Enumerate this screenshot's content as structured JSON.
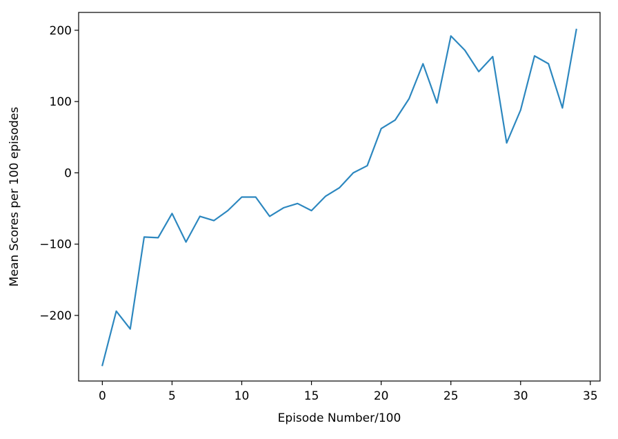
{
  "chart_data": {
    "type": "line",
    "title": "",
    "xlabel": "Episode Number/100",
    "ylabel": "Mean Scores per 100 episodes",
    "xlim": [
      -1.7,
      35.7
    ],
    "ylim": [
      -292,
      225
    ],
    "grid": false,
    "legend": "none",
    "line_color": "#2c87bf",
    "x_ticks": [
      0,
      5,
      10,
      15,
      20,
      25,
      30,
      35
    ],
    "x_tick_labels": [
      "0",
      "5",
      "10",
      "15",
      "20",
      "25",
      "30",
      "35"
    ],
    "y_ticks": [
      -200,
      -100,
      0,
      100,
      200
    ],
    "y_tick_labels": [
      "−200",
      "−100",
      "0",
      "100",
      "200"
    ],
    "series": [
      {
        "x": [
          0,
          1,
          2,
          3,
          4,
          5,
          6,
          7,
          8,
          9,
          10,
          11,
          12,
          13,
          14,
          15,
          16,
          17,
          18,
          19,
          20,
          21,
          22,
          23,
          24,
          25,
          26,
          27,
          28,
          29,
          30,
          31,
          32,
          33,
          34
        ],
        "values": [
          -270,
          -194,
          -219,
          -90,
          -91,
          -57,
          -97,
          -61,
          -67,
          -53,
          -34,
          -34,
          -61,
          -49,
          -43,
          -53,
          -33,
          -21,
          0,
          10,
          62,
          74,
          104,
          153,
          98,
          192,
          172,
          142,
          163,
          42,
          88,
          164,
          153,
          91,
          201
        ]
      }
    ]
  }
}
